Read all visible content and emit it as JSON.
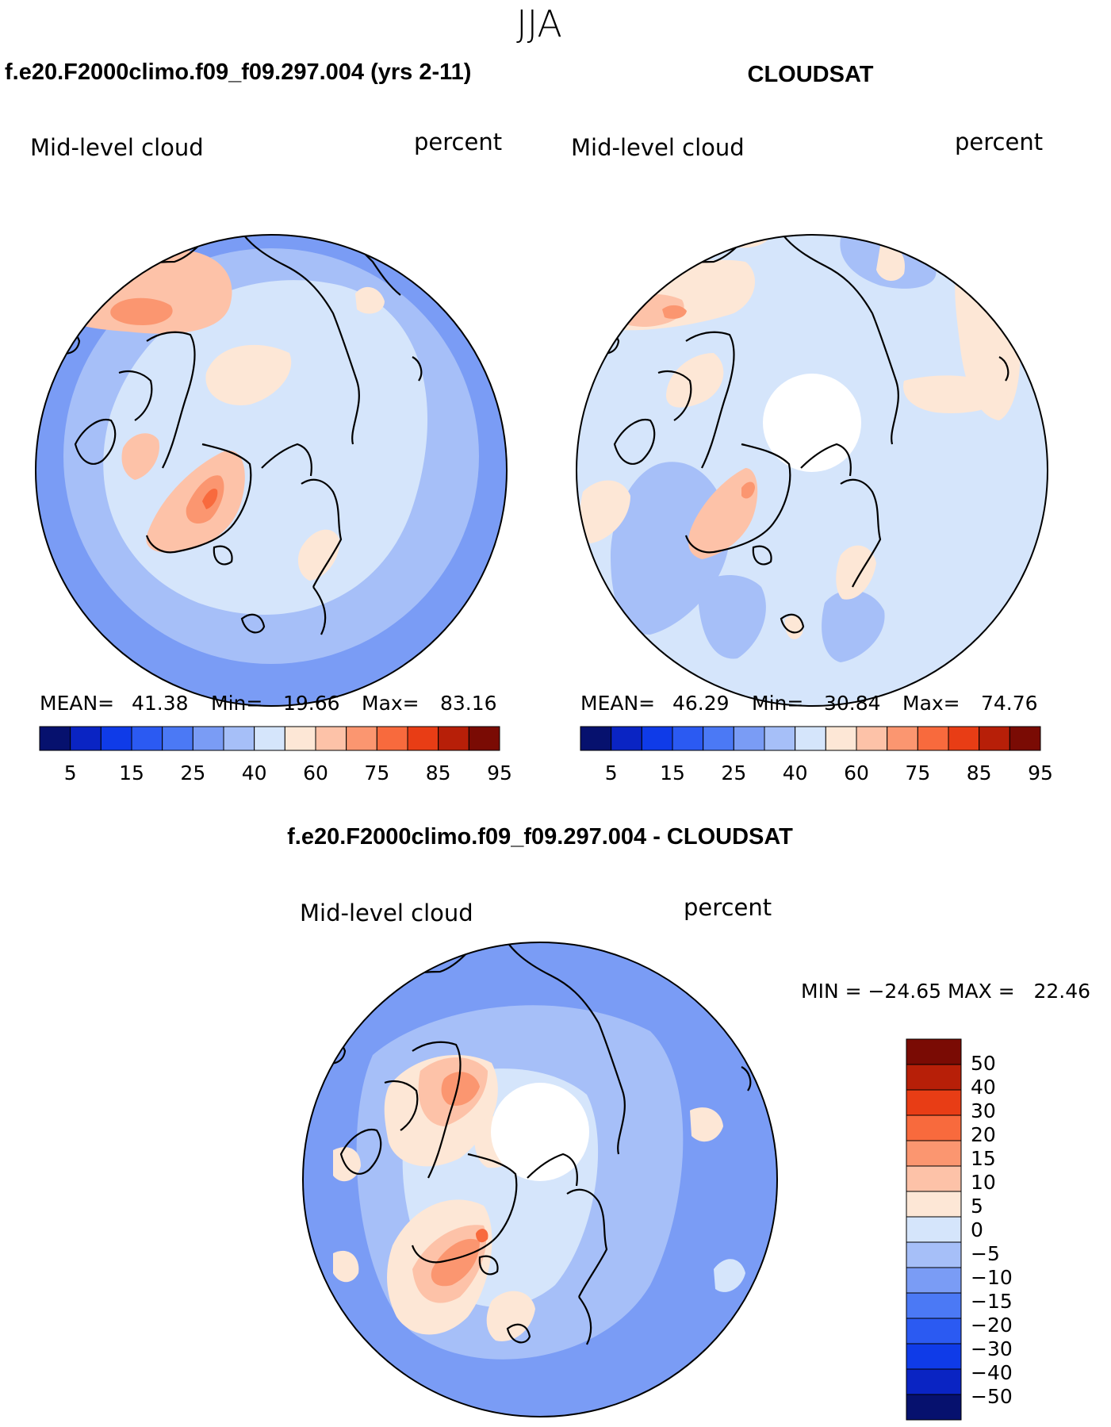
{
  "page": {
    "season": "JJA",
    "model_title": "f.e20.F2000climo.f09_f09.297.004 (yrs 2-11)",
    "obs_title": "CLOUDSAT",
    "diff_title": "f.e20.F2000climo.f09_f09.297.004 - CLOUDSAT"
  },
  "palette": {
    "abs_colors": [
      "#06116e",
      "#0a24c3",
      "#0f3be8",
      "#2b5af2",
      "#4b79f5",
      "#7a9cf5",
      "#a6bff8",
      "#d5e5fb",
      "#fde7d6",
      "#fdc2a8",
      "#fb9670",
      "#f86a3d",
      "#e83d15",
      "#b71f08",
      "#7a0b04"
    ],
    "diff_colors": [
      "#06116e",
      "#0a24c3",
      "#0f3be8",
      "#2b5af2",
      "#4b79f5",
      "#7a9cf5",
      "#a6bff8",
      "#d5e5fb",
      "#fde7d6",
      "#fdc2a8",
      "#fb9670",
      "#f86a3d",
      "#e83d15",
      "#b71f08",
      "#7a0b04"
    ],
    "land_line": "#000000"
  },
  "chart_data": [
    {
      "type": "heatmap",
      "projection": "north-polar-stereographic",
      "panel": "model",
      "variable": "Mid-level cloud",
      "units": "percent",
      "stats": {
        "mean_label": "MEAN=",
        "mean": "41.38",
        "min_label": "Min=",
        "min": "19.66",
        "max_label": "Max=",
        "max": "83.16"
      },
      "colorbar_ticks": [
        "5",
        "15",
        "25",
        "40",
        "60",
        "75",
        "85",
        "95"
      ],
      "has_polar_gap": false
    },
    {
      "type": "heatmap",
      "projection": "north-polar-stereographic",
      "panel": "cloudsat",
      "variable": "Mid-level cloud",
      "units": "percent",
      "stats": {
        "mean_label": "MEAN=",
        "mean": "46.29",
        "min_label": "Min=",
        "min": "30.84",
        "max_label": "Max=",
        "max": "74.76"
      },
      "colorbar_ticks": [
        "5",
        "15",
        "25",
        "40",
        "60",
        "75",
        "85",
        "95"
      ],
      "has_polar_gap": true
    },
    {
      "type": "heatmap",
      "projection": "north-polar-stereographic",
      "panel": "difference",
      "variable": "Mid-level cloud",
      "units": "percent",
      "stats_text": "MIN = −24.65 MAX =   22.46",
      "colorbar_ticks": [
        "50",
        "40",
        "30",
        "20",
        "15",
        "10",
        "5",
        "0",
        "−5",
        "−10",
        "−15",
        "−20",
        "−30",
        "−40",
        "−50"
      ],
      "has_polar_gap": true
    }
  ]
}
